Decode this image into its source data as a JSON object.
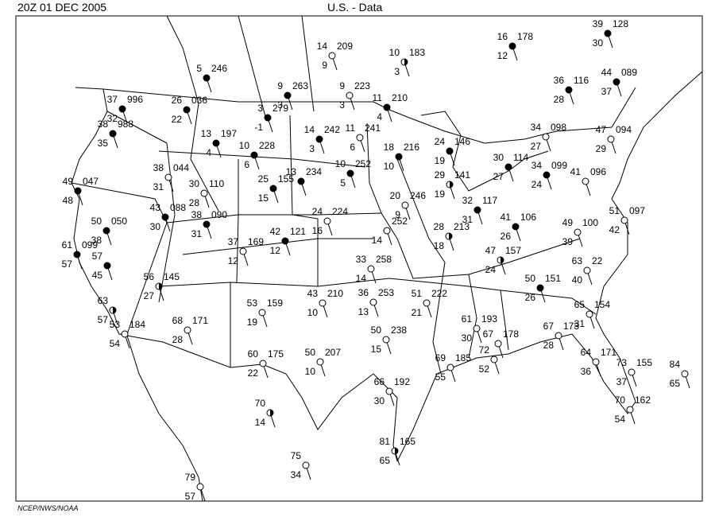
{
  "header": {
    "time": "20Z   01 DEC  2005",
    "title": "U.S. -  Data"
  },
  "footer": "NCEP/NWS/NOAA",
  "stations": [
    {
      "temp": "5",
      "pressure": "246"
    },
    {
      "temp": "14",
      "pressure": "209",
      "dew": "9"
    },
    {
      "temp": "10",
      "pressure": "183",
      "dew": "3"
    },
    {
      "temp": "16",
      "pressure": "178",
      "dew": "12"
    },
    {
      "temp": "39",
      "pressure": "128",
      "dew": "30"
    },
    {
      "temp": "9",
      "pressure": "263",
      "dew": "3"
    },
    {
      "temp": "9",
      "pressure": "223",
      "dew": "3"
    },
    {
      "temp": "11",
      "pressure": "210",
      "dew": "4"
    },
    {
      "temp": "36",
      "pressure": "116",
      "dew": "28"
    },
    {
      "temp": "44",
      "pressure": "089",
      "dew": "37"
    },
    {
      "temp": "37",
      "pressure": "996",
      "dew": "32"
    },
    {
      "temp": "26",
      "pressure": "036",
      "dew": "22"
    },
    {
      "temp": "38",
      "pressure": "988",
      "dew": "35"
    },
    {
      "temp": "13",
      "pressure": "197",
      "dew": "4"
    },
    {
      "temp": "3",
      "pressure": "279",
      "dew": "-1"
    },
    {
      "temp": "10",
      "pressure": "228",
      "dew": "6"
    },
    {
      "temp": "14",
      "pressure": "242",
      "dew": "3"
    },
    {
      "temp": "11",
      "pressure": "241",
      "dew": "6"
    },
    {
      "temp": "18",
      "pressure": "216",
      "dew": "10"
    },
    {
      "temp": "24",
      "pressure": "146",
      "dew": "19"
    },
    {
      "temp": "34",
      "pressure": "098",
      "dew": "27"
    },
    {
      "temp": "47",
      "pressure": "094",
      "dew": "29"
    },
    {
      "temp": "30",
      "pressure": "114",
      "dew": "27"
    },
    {
      "temp": "34",
      "pressure": "099",
      "dew": "24"
    },
    {
      "temp": "41",
      "pressure": "096"
    },
    {
      "temp": "38",
      "pressure": "044",
      "dew": "31"
    },
    {
      "temp": "30",
      "pressure": "110",
      "dew": "28"
    },
    {
      "temp": "25",
      "pressure": "155",
      "dew": "15"
    },
    {
      "temp": "13",
      "pressure": "234"
    },
    {
      "temp": "10",
      "pressure": "252",
      "dew": "5"
    },
    {
      "temp": "20",
      "pressure": "246",
      "dew": "9"
    },
    {
      "temp": "29",
      "pressure": "141",
      "dew": "19"
    },
    {
      "temp": "32",
      "pressure": "117",
      "dew": "31"
    },
    {
      "temp": "49",
      "pressure": "047",
      "dew": "48"
    },
    {
      "temp": "43",
      "pressure": "088",
      "dew": "30"
    },
    {
      "temp": "38",
      "pressure": "090",
      "dew": "31"
    },
    {
      "temp": "50",
      "pressure": "050",
      "dew": "38"
    },
    {
      "temp": "61",
      "pressure": "099",
      "dew": "57"
    },
    {
      "temp": "57",
      "dew": "45"
    },
    {
      "temp": "24",
      "pressure": "224",
      "dew": "16"
    },
    {
      "pressure": "252",
      "dew": "14"
    },
    {
      "temp": "42",
      "pressure": "121",
      "dew": "12"
    },
    {
      "temp": "37",
      "pressure": "169",
      "dew": "12"
    },
    {
      "temp": "28",
      "pressure": "213",
      "dew": "18"
    },
    {
      "temp": "41",
      "pressure": "106",
      "dew": "26"
    },
    {
      "temp": "33",
      "pressure": "258",
      "dew": "14"
    },
    {
      "temp": "49",
      "pressure": "100",
      "dew": "39"
    },
    {
      "temp": "51",
      "pressure": "097",
      "dew": "42"
    },
    {
      "temp": "47",
      "pressure": "157",
      "dew": "24"
    },
    {
      "temp": "63",
      "pressure": "22",
      "dew": "40"
    },
    {
      "temp": "36",
      "pressure": "253",
      "dew": "13"
    },
    {
      "temp": "51",
      "pressure": "222",
      "dew": "21"
    },
    {
      "temp": "56",
      "pressure": "145",
      "dew": "27"
    },
    {
      "temp": "50",
      "pressure": "151",
      "dew": "26"
    },
    {
      "temp": "53",
      "pressure": "159",
      "dew": "19"
    },
    {
      "temp": "43",
      "pressure": "210",
      "dew": "10"
    },
    {
      "temp": "63",
      "dew": "57"
    },
    {
      "temp": "53",
      "pressure": "184",
      "dew": "54"
    },
    {
      "temp": "68",
      "pressure": "171",
      "dew": "28"
    },
    {
      "temp": "61",
      "pressure": "193",
      "dew": "30"
    },
    {
      "temp": "65",
      "pressure": "154",
      "dew": "31"
    },
    {
      "temp": "50",
      "pressure": "238",
      "dew": "15"
    },
    {
      "temp": "67",
      "pressure": "178"
    },
    {
      "temp": "67",
      "pressure": "173",
      "dew": "28"
    },
    {
      "temp": "64",
      "pressure": "171",
      "dew": "36"
    },
    {
      "temp": "60",
      "pressure": "175",
      "dew": "22"
    },
    {
      "temp": "50",
      "pressure": "207",
      "dew": "10"
    },
    {
      "temp": "69",
      "pressure": "185",
      "dew": "55"
    },
    {
      "temp": "72",
      "dew": "52"
    },
    {
      "temp": "66",
      "pressure": "192",
      "dew": "30"
    },
    {
      "temp": "73",
      "pressure": "155",
      "dew": "37"
    },
    {
      "temp": "84",
      "dew": "65"
    },
    {
      "temp": "70",
      "pressure": "162",
      "dew": "54"
    },
    {
      "temp": "70",
      "dew": "14"
    },
    {
      "temp": "81",
      "pressure": "165",
      "dew": "65"
    },
    {
      "temp": "75",
      "dew": "34"
    },
    {
      "temp": "79",
      "dew": "57"
    }
  ]
}
